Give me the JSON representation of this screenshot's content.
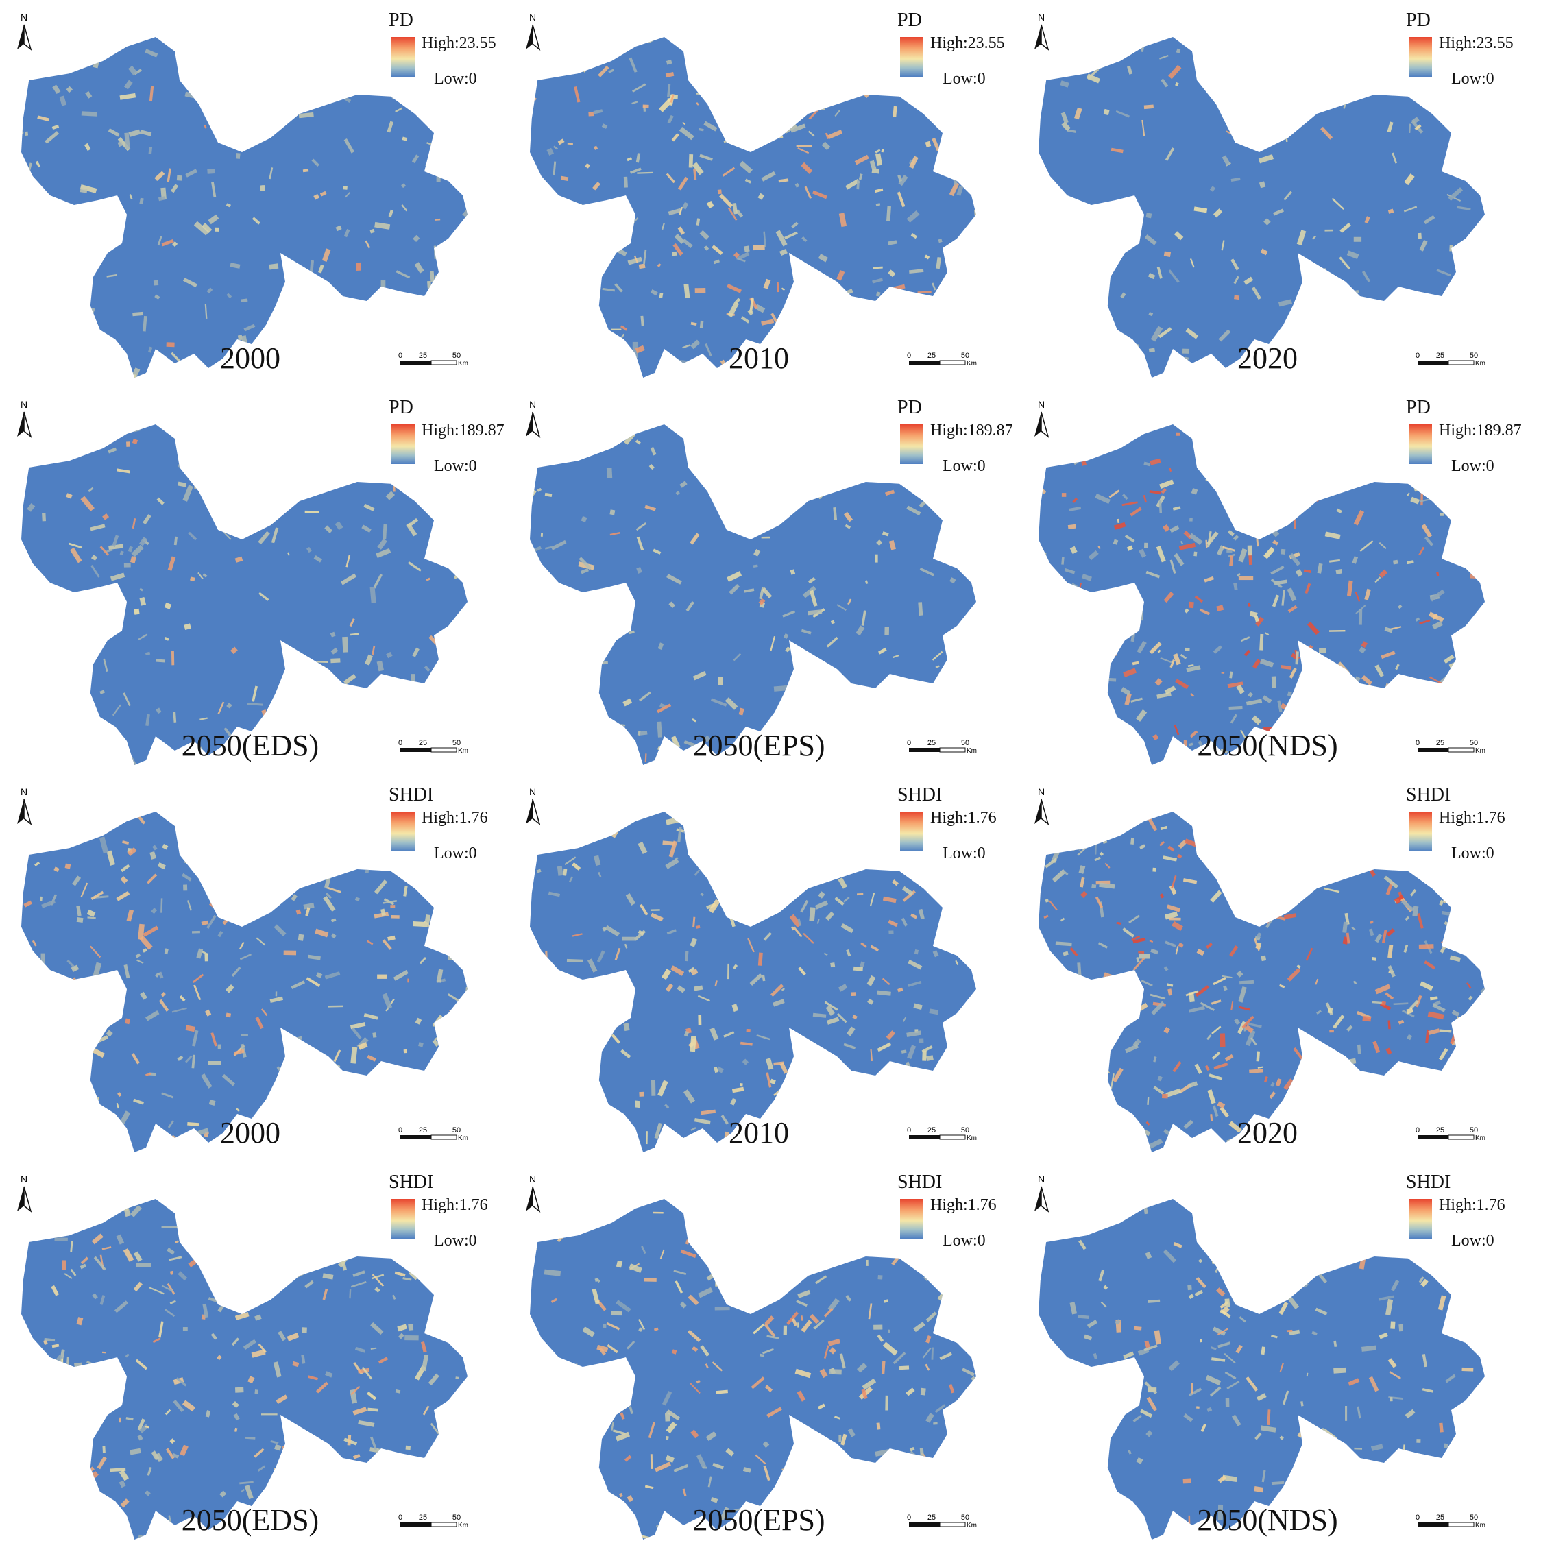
{
  "panels": [
    {
      "title": "2000",
      "index": "PD",
      "high": "High:23.55",
      "low": "Low:0",
      "tone": 0.12
    },
    {
      "title": "2010",
      "index": "PD",
      "high": "High:23.55",
      "low": "Low:0",
      "tone": 0.45
    },
    {
      "title": "2020",
      "index": "PD",
      "high": "High:23.55",
      "low": "Low:0",
      "tone": 0.08
    },
    {
      "title": "2050(EDS)",
      "index": "PD",
      "high": "High:189.87",
      "low": "Low:0",
      "tone": 0.15
    },
    {
      "title": "2050(EPS)",
      "index": "PD",
      "high": "High:189.87",
      "low": "Low:0",
      "tone": 0.06
    },
    {
      "title": "2050(NDS)",
      "index": "PD",
      "high": "High:189.87",
      "low": "Low:0",
      "tone": 0.55
    },
    {
      "title": "2000",
      "index": "SHDI",
      "high": "High:1.76",
      "low": "Low:0",
      "tone": 0.42
    },
    {
      "title": "2010",
      "index": "SHDI",
      "high": "High:1.76",
      "low": "Low:0",
      "tone": 0.4
    },
    {
      "title": "2020",
      "index": "SHDI",
      "high": "High:1.76",
      "low": "Low:0",
      "tone": 0.7
    },
    {
      "title": "2050(EDS)",
      "index": "SHDI",
      "high": "High:1.76",
      "low": "Low:0",
      "tone": 0.4
    },
    {
      "title": "2050(EPS)",
      "index": "SHDI",
      "high": "High:1.76",
      "low": "Low:0",
      "tone": 0.38
    },
    {
      "title": "2050(NDS)",
      "index": "SHDI",
      "high": "High:1.76",
      "low": "Low:0",
      "tone": 0.3
    }
  ],
  "north_label": "N",
  "scale_ticks": [
    "0",
    "25",
    "50"
  ],
  "scale_unit": "Km",
  "colors": {
    "low": "#4f7fc2",
    "mid": "#f5e6a8",
    "high": "#e8452f"
  }
}
